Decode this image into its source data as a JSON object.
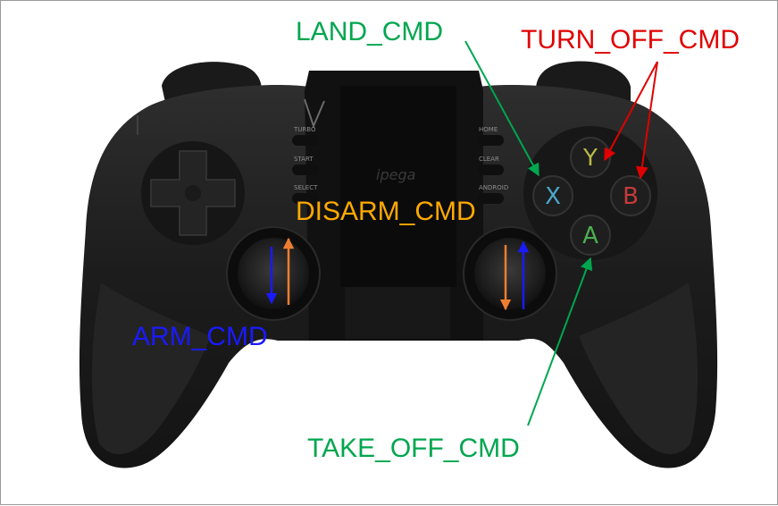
{
  "colors": {
    "green": "#00a64f",
    "red": "#e00000",
    "orange": "#ffaa00",
    "blue": "#1a1aff",
    "arrow_orange": "#ee7d31"
  },
  "labels": {
    "land": "LAND_CMD",
    "turn_off": "TURN_OFF_CMD",
    "disarm": "DISARM_CMD",
    "arm": "ARM_CMD",
    "take_off": "TAKE_OFF_CMD"
  },
  "controller": {
    "buttons": {
      "y": "Y",
      "x": "X",
      "b": "B",
      "a": "A"
    },
    "small_labels": [
      "TURBO",
      "START",
      "SELECT",
      "HOME",
      "CLEAR",
      "ANDROID"
    ],
    "logo": "ipega",
    "logo_mark": "√"
  },
  "icons": [
    "gamepad-icon",
    "dpad-icon",
    "thumbstick-icon",
    "arrow-icon"
  ]
}
